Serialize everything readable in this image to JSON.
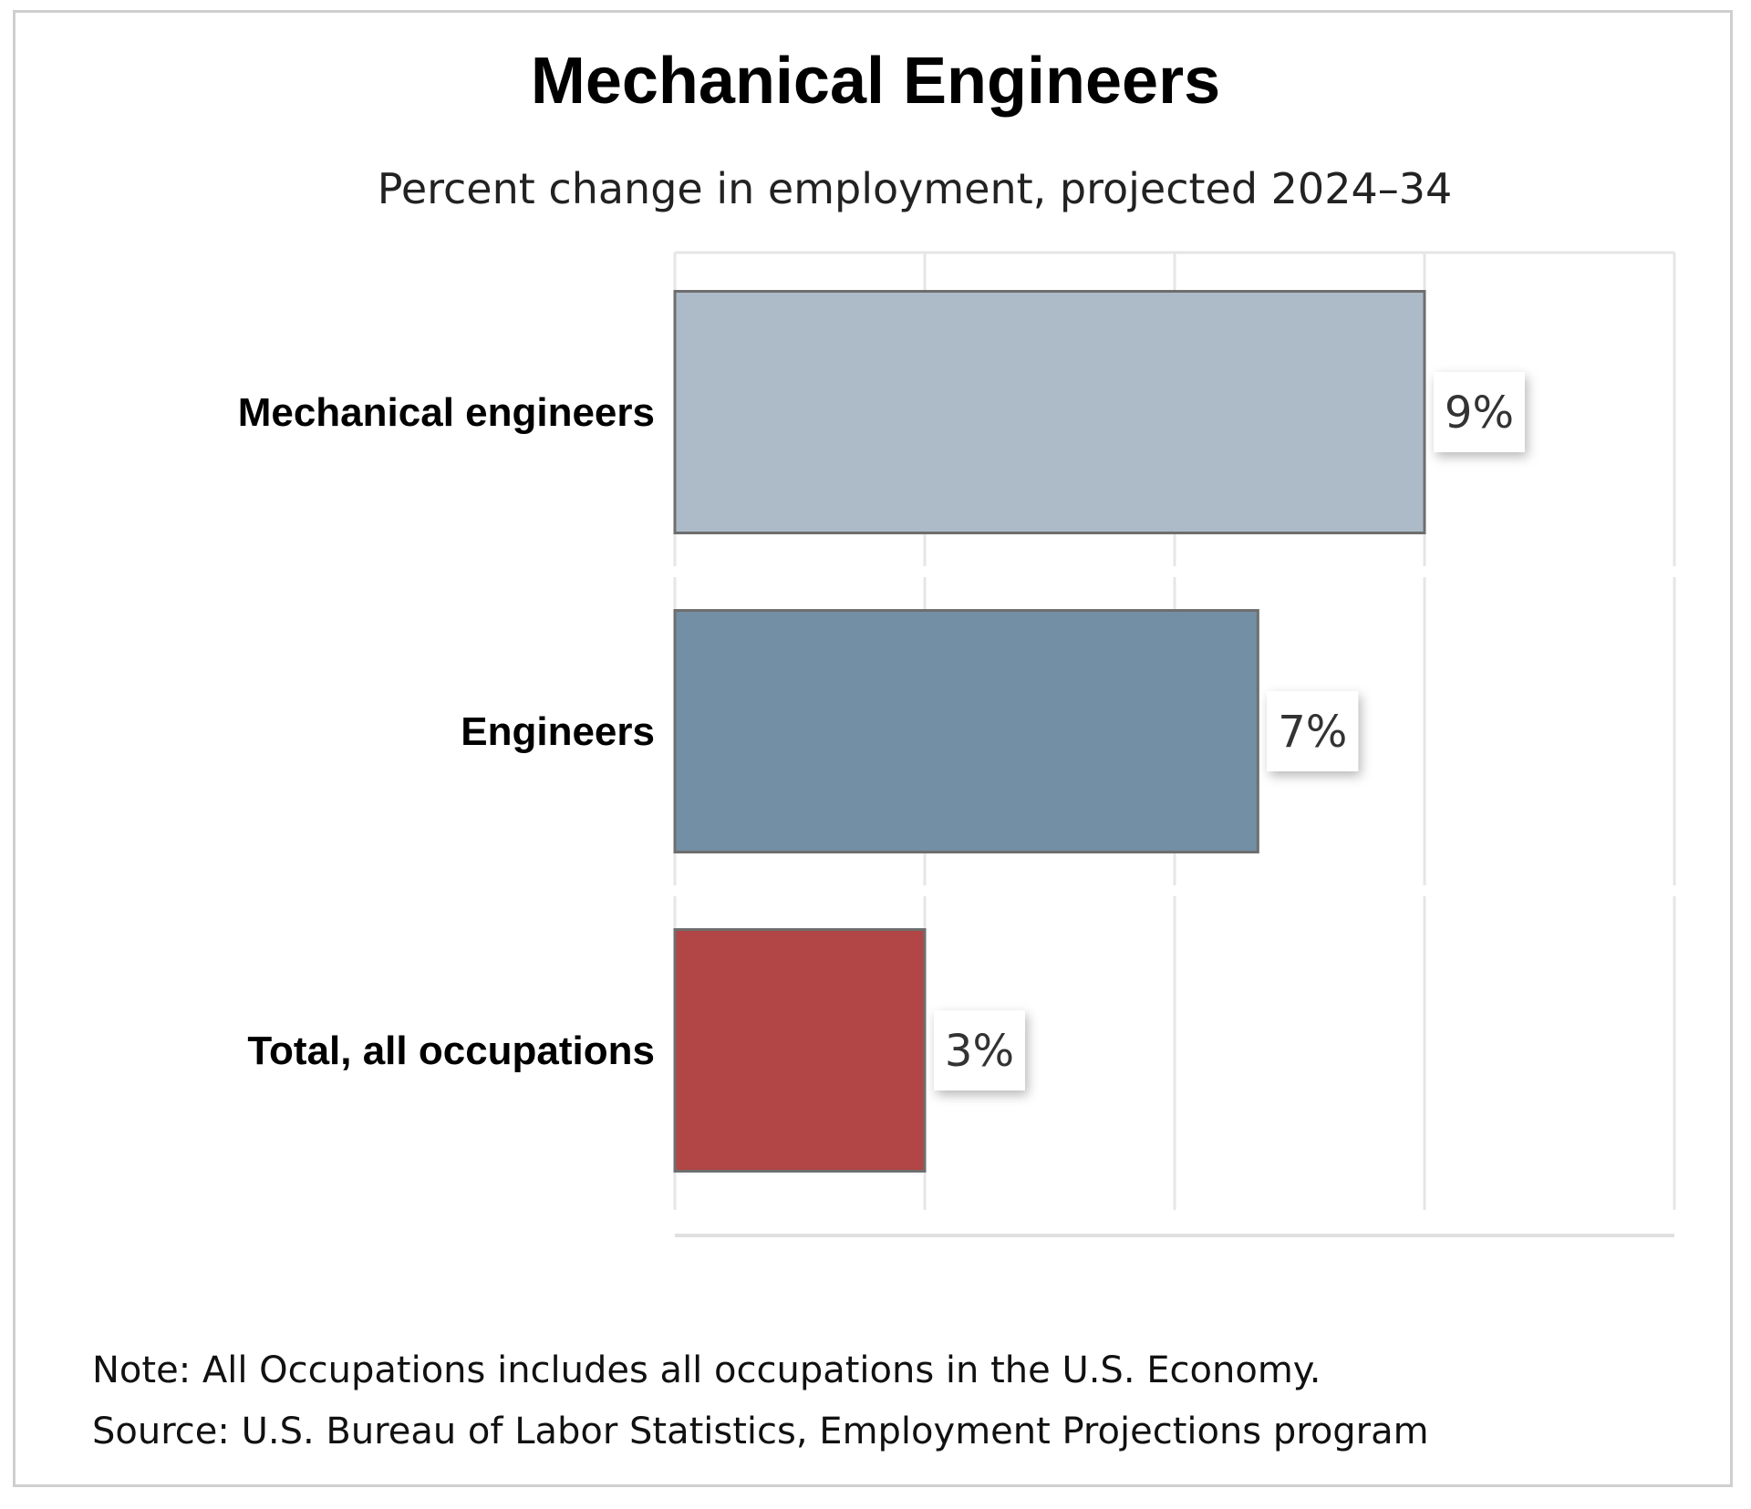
{
  "title": "Mechanical Engineers",
  "subtitle": "Percent change in employment, projected 2024–34",
  "chart_data": {
    "type": "bar",
    "orientation": "horizontal",
    "title": "Mechanical Engineers",
    "subtitle": "Percent change in employment, projected 2024–34",
    "categories": [
      "Mechanical engineers",
      "Engineers",
      "Total, all occupations"
    ],
    "values": [
      9,
      7,
      3
    ],
    "value_labels": [
      "9%",
      "7%",
      "3%"
    ],
    "colors": [
      "#adbbc8",
      "#738fa6",
      "#b24545"
    ],
    "xlim": [
      0,
      12
    ],
    "grid": true,
    "legend": "none"
  },
  "footer": {
    "note": "Note: All Occupations includes all occupations in the U.S. Economy.",
    "source": "Source: U.S. Bureau of Labor Statistics, Employment Projections program"
  }
}
